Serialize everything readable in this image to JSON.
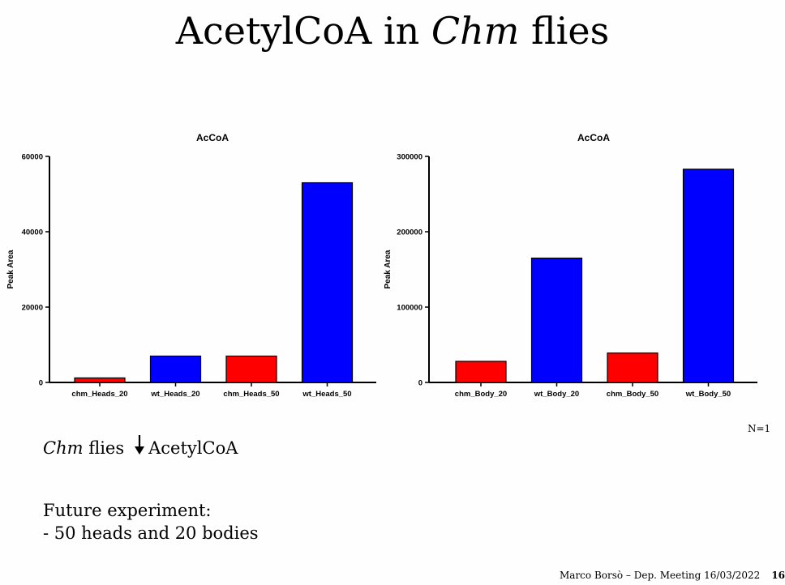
{
  "slide": {
    "title_main": "AcetylCoA in ",
    "title_italic": "Chm",
    "title_end": " flies",
    "n_note": "N=1",
    "conclusion_italic": "Chm",
    "conclusion_text": " flies",
    "conclusion_arrow": "down-arrow-icon",
    "conclusion_target": "AcetylCoA",
    "future_line1": "Future experiment:",
    "future_line2": "- 50 heads and 20 bodies",
    "footer_text": "Marco Borsò – Dep. Meeting 16/03/2022",
    "page_number": "16"
  },
  "chart_data": [
    {
      "type": "bar",
      "title": "AcCoA",
      "ylabel": "Peak Area",
      "xlabel": "",
      "categories": [
        "chm_Heads_20",
        "wt_Heads_20",
        "chm_Heads_50",
        "wt_Heads_50"
      ],
      "values": [
        1200,
        7000,
        7000,
        53000
      ],
      "colors": [
        "#ff0000",
        "#0000ff",
        "#ff0000",
        "#0000ff"
      ],
      "ylim": [
        0,
        60000
      ],
      "yticks": [
        0,
        20000,
        40000,
        60000
      ],
      "ytick_labels": [
        "0",
        "20000",
        "40000",
        "60000"
      ],
      "grid": false
    },
    {
      "type": "bar",
      "title": "AcCoA",
      "ylabel": "Peak Area",
      "xlabel": "",
      "categories": [
        "chm_Body_20",
        "wt_Body_20",
        "chm_Body_50",
        "wt_Body_50"
      ],
      "values": [
        28000,
        165000,
        39000,
        283000
      ],
      "colors": [
        "#ff0000",
        "#0000ff",
        "#ff0000",
        "#0000ff"
      ],
      "ylim": [
        0,
        300000
      ],
      "yticks": [
        0,
        100000,
        200000,
        300000
      ],
      "ytick_labels": [
        "0",
        "100000",
        "200000",
        "300000"
      ],
      "grid": false
    }
  ]
}
